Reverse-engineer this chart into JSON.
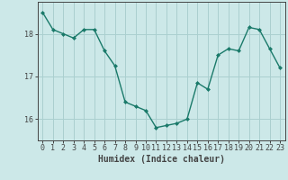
{
  "x": [
    0,
    1,
    2,
    3,
    4,
    5,
    6,
    7,
    8,
    9,
    10,
    11,
    12,
    13,
    14,
    15,
    16,
    17,
    18,
    19,
    20,
    21,
    22,
    23
  ],
  "y": [
    18.5,
    18.1,
    18.0,
    17.9,
    18.1,
    18.1,
    17.6,
    17.25,
    16.4,
    16.3,
    16.2,
    15.8,
    15.85,
    15.9,
    16.0,
    16.85,
    16.7,
    17.5,
    17.65,
    17.6,
    18.15,
    18.1,
    17.65,
    17.2
  ],
  "line_color": "#1a7a6a",
  "marker_color": "#1a7a6a",
  "bg_color": "#cce8e8",
  "grid_color": "#aacfcf",
  "axis_color": "#444444",
  "xlabel": "Humidex (Indice chaleur)",
  "ylim": [
    15.5,
    18.75
  ],
  "yticks": [
    16,
    17,
    18
  ],
  "xticks": [
    0,
    1,
    2,
    3,
    4,
    5,
    6,
    7,
    8,
    9,
    10,
    11,
    12,
    13,
    14,
    15,
    16,
    17,
    18,
    19,
    20,
    21,
    22,
    23
  ],
  "xlabel_fontsize": 7,
  "tick_fontsize": 6
}
